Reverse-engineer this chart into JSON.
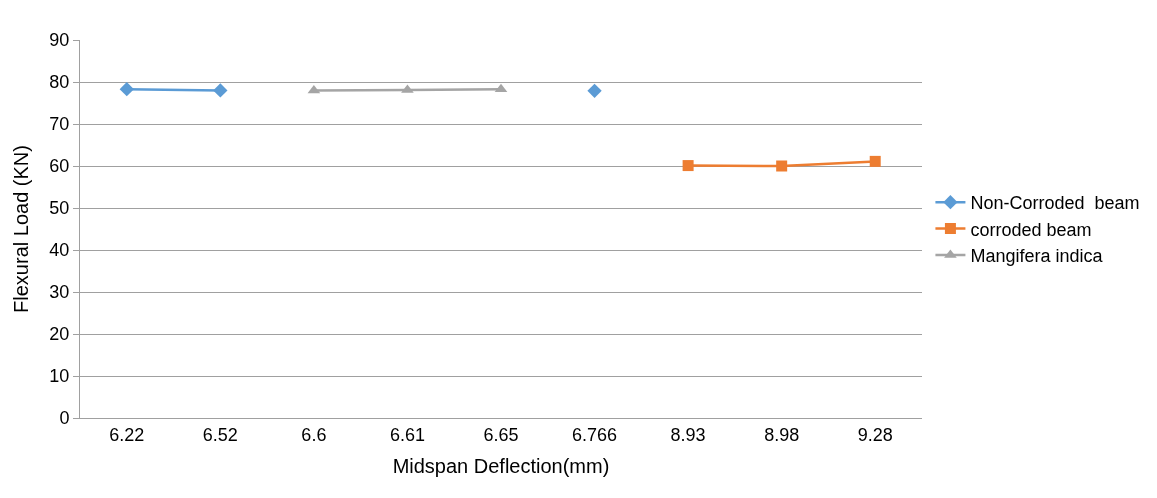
{
  "chart_data": {
    "type": "line",
    "xlabel": "Midspan Deflection(mm)",
    "ylabel": "Flexural Load (KN)",
    "categories": [
      "6.22",
      "6.52",
      "6.6",
      "6.61",
      "6.65",
      "6.766",
      "8.93",
      "8.98",
      "9.28"
    ],
    "series": [
      {
        "name": "Non-Corroded  beam",
        "color": "#5b9bd5",
        "marker": "diamond",
        "values": [
          78.3,
          78.0,
          null,
          null,
          null,
          77.9,
          null,
          null,
          null
        ]
      },
      {
        "name": "corroded beam",
        "color": "#ed7d31",
        "marker": "square",
        "values": [
          null,
          null,
          null,
          null,
          null,
          null,
          60.1,
          60.0,
          61.1
        ]
      },
      {
        "name": "Mangifera indica",
        "color": "#a5a5a5",
        "marker": "triangle",
        "values": [
          null,
          null,
          78.0,
          78.1,
          78.3,
          null,
          null,
          null,
          null
        ]
      }
    ],
    "ylim": [
      0,
      90
    ],
    "yticks": [
      0,
      10,
      20,
      30,
      40,
      50,
      60,
      70,
      80,
      90
    ],
    "grid": "y",
    "legend": "right",
    "line_style": "solid"
  }
}
